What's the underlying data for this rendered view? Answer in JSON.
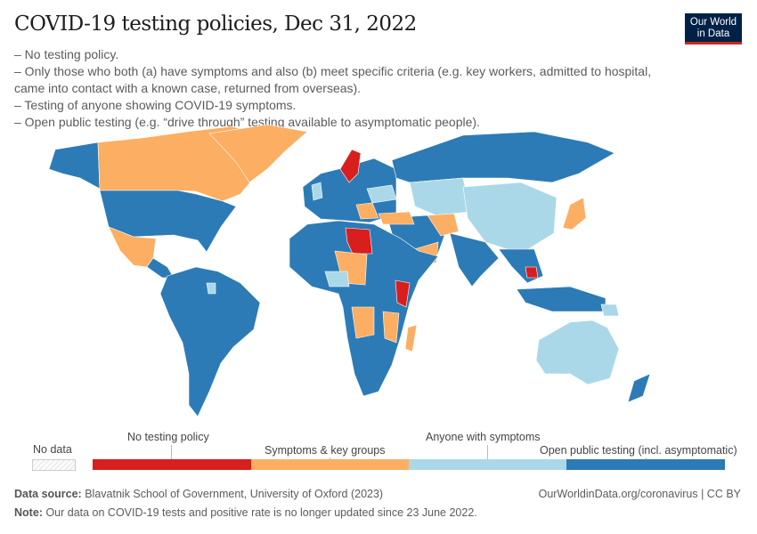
{
  "header": {
    "title": "COVID-19 testing policies, Dec 31, 2022",
    "subtitle_lines": [
      "– No testing policy.",
      "– Only those who both (a) have symptoms and also (b) meet specific criteria (e.g. key workers, admitted to hospital, came into contact with a known case, returned from overseas).",
      "– Testing of anyone showing COVID-19 symptoms.",
      "– Open public testing (e.g. “drive through” testing available to asymptomatic people)."
    ],
    "logo_line1": "Our World",
    "logo_line2": "in Data"
  },
  "legend": {
    "no_data": "No data",
    "categories": [
      {
        "label": "No testing policy",
        "color": "#d91e1e"
      },
      {
        "label": "Symptoms & key groups",
        "color": "#fcae62"
      },
      {
        "label": "Anyone with symptoms",
        "color": "#abd8e8"
      },
      {
        "label": "Open public testing (incl. asymptomatic)",
        "color": "#2c7bb6"
      }
    ]
  },
  "footer": {
    "source_label": "Data source:",
    "source": "Blavatnik School of Government, University of Oxford (2023)",
    "note_label": "Note:",
    "note": "Our data on COVID-19 tests and positive rate is no longer updated since 23 June 2022.",
    "link": "OurWorldinData.org/coronavirus | CC BY"
  }
}
